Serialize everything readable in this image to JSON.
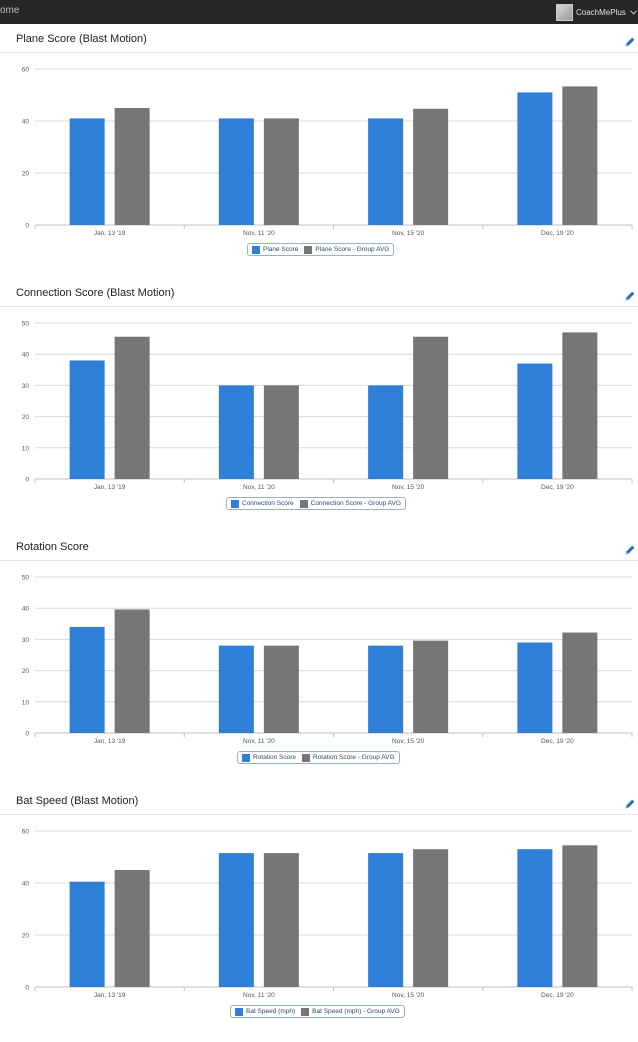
{
  "topbar": {
    "home_label": "ome",
    "user_name": "CoachMePlus"
  },
  "colors": {
    "individual": "#2f7ed8",
    "group": "#767676",
    "grid": "#d8d8d8",
    "axis": "#c0c0c0"
  },
  "chart_data": [
    {
      "type": "bar",
      "title": "Plane Score (Blast Motion)",
      "categories": [
        "Jan, 13 '19",
        "Nov, 11 '20",
        "Nov, 15 '20",
        "Dec, 19 '20"
      ],
      "series": [
        {
          "name": "Plane Score",
          "values": [
            41,
            41,
            41,
            51
          ]
        },
        {
          "name": "Plane Score - Group AVG",
          "values": [
            45,
            41,
            44.7,
            53.3
          ]
        }
      ],
      "ylim": [
        0,
        60
      ],
      "yticks": [
        0,
        20,
        40,
        60
      ],
      "xlabel": "",
      "ylabel": "",
      "legend": "bottom-center"
    },
    {
      "type": "bar",
      "title": "Connection Score (Blast Motion)",
      "categories": [
        "Jan, 13 '19",
        "Nov, 11 '20",
        "Nov, 15 '20",
        "Dec, 19 '20"
      ],
      "series": [
        {
          "name": "Connection Score",
          "values": [
            38,
            30,
            30,
            37
          ]
        },
        {
          "name": "Connection Score - Group AVG",
          "values": [
            45.6,
            30,
            45.6,
            47
          ]
        }
      ],
      "ylim": [
        0,
        50
      ],
      "yticks": [
        0,
        10,
        20,
        30,
        40,
        50
      ],
      "xlabel": "",
      "ylabel": "",
      "legend": "bottom-center"
    },
    {
      "type": "bar",
      "title": "Rotation Score",
      "categories": [
        "Jan, 13 '19",
        "Nov, 11 '20",
        "Nov, 15 '20",
        "Dec, 19 '20"
      ],
      "series": [
        {
          "name": "Rotation Score",
          "values": [
            34,
            28,
            28,
            29
          ]
        },
        {
          "name": "Rotation Score - Group AVG",
          "values": [
            39.6,
            28,
            29.6,
            32.2
          ]
        }
      ],
      "ylim": [
        0,
        50
      ],
      "yticks": [
        0,
        10,
        20,
        30,
        40,
        50
      ],
      "xlabel": "",
      "ylabel": "",
      "legend": "bottom-center"
    },
    {
      "type": "bar",
      "title": "Bat Speed (Blast Motion)",
      "categories": [
        "Jan, 13 '19",
        "Nov, 11 '20",
        "Nov, 15 '20",
        "Dec, 19 '20"
      ],
      "series": [
        {
          "name": "Bat Speed (mph)",
          "values": [
            40.5,
            51.5,
            51.5,
            53
          ]
        },
        {
          "name": "Bat Speed (mph) - Group AVG",
          "values": [
            45,
            51.5,
            53,
            54.5
          ]
        }
      ],
      "ylim": [
        0,
        60
      ],
      "yticks": [
        0,
        20,
        40,
        60
      ],
      "xlabel": "",
      "ylabel": "",
      "legend": "bottom-center"
    }
  ]
}
